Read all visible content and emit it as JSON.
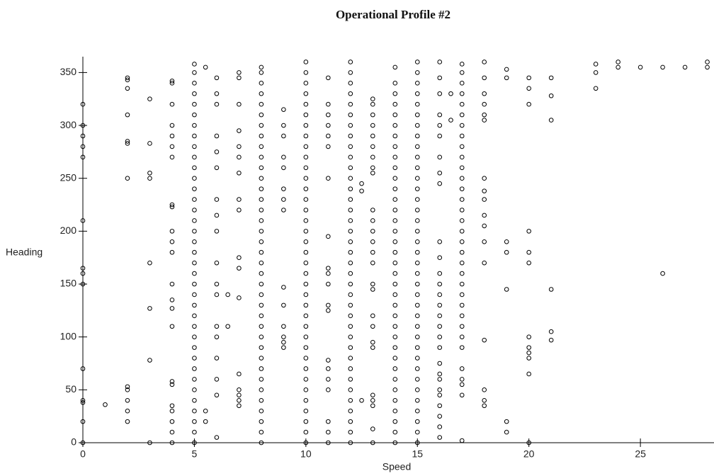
{
  "chart_data": {
    "type": "scatter",
    "title": "Operational Profile #2",
    "x_label": "Speed",
    "y_label": "Heading",
    "xlim": [
      0,
      28.3
    ],
    "ylim": [
      0,
      365
    ],
    "xticks": [
      0,
      5,
      10,
      15,
      20,
      25
    ],
    "yticks": [
      0,
      50,
      100,
      150,
      200,
      250,
      300,
      350
    ],
    "color": "#000000",
    "x": [
      0,
      0,
      0,
      0,
      0,
      0,
      0,
      0,
      0,
      0,
      0,
      0,
      0,
      0,
      1,
      2,
      2,
      2,
      2,
      2,
      2,
      2,
      2,
      2,
      2,
      2,
      2,
      3,
      3,
      3,
      3,
      3,
      3,
      3,
      3,
      4,
      4,
      4,
      4,
      4,
      4,
      4,
      4,
      4,
      4,
      4,
      4,
      4,
      4,
      4,
      4,
      4,
      4,
      4,
      4,
      4,
      4,
      4,
      5,
      5,
      5,
      5,
      5,
      5,
      5,
      5,
      5,
      5,
      5,
      5,
      5,
      5,
      5,
      5,
      5,
      5,
      5,
      5,
      5,
      5,
      5,
      5,
      5,
      5,
      5,
      5,
      5,
      5,
      5,
      5,
      5,
      5,
      5,
      5,
      5,
      5.5,
      5.5,
      5.5,
      6,
      6,
      6,
      6,
      6,
      6,
      6,
      6,
      6,
      6,
      6,
      6,
      6,
      6,
      6,
      6,
      6,
      6,
      6.5,
      6.5,
      7,
      7,
      7,
      7,
      7,
      7,
      7,
      7,
      7,
      7,
      7,
      7,
      7,
      7,
      7,
      7,
      7,
      8,
      8,
      8,
      8,
      8,
      8,
      8,
      8,
      8,
      8,
      8,
      8,
      8,
      8,
      8,
      8,
      8,
      8,
      8,
      8,
      8,
      8,
      8,
      8,
      8,
      8,
      8,
      8,
      8,
      8,
      8,
      8,
      8,
      8,
      8,
      8,
      8,
      9,
      9,
      9,
      9,
      9,
      9,
      9,
      9,
      9,
      9,
      9,
      9,
      9,
      9,
      10,
      10,
      10,
      10,
      10,
      10,
      10,
      10,
      10,
      10,
      10,
      10,
      10,
      10,
      10,
      10,
      10,
      10,
      10,
      10,
      10,
      10,
      10,
      10,
      10,
      10,
      10,
      10,
      10,
      10,
      10,
      10,
      10,
      10,
      10,
      10,
      10,
      11,
      11,
      11,
      11,
      11,
      11,
      11,
      11,
      11,
      11,
      11,
      11,
      11,
      11,
      11,
      11,
      11,
      11,
      11,
      11,
      12,
      12,
      12,
      12,
      12,
      12,
      12,
      12,
      12,
      12,
      12,
      12,
      12,
      12,
      12,
      12,
      12,
      12,
      12,
      12,
      12,
      12,
      12,
      12,
      12,
      12,
      12,
      12,
      12,
      12,
      12,
      12,
      12,
      12,
      12,
      12,
      12,
      12.5,
      12.5,
      12.5,
      13,
      13,
      13,
      13,
      13,
      13,
      13,
      13,
      13,
      13,
      13,
      13,
      13,
      13,
      13,
      13,
      13,
      13,
      13,
      13,
      13,
      13,
      13,
      13,
      13,
      13,
      14,
      14,
      14,
      14,
      14,
      14,
      14,
      14,
      14,
      14,
      14,
      14,
      14,
      14,
      14,
      14,
      14,
      14,
      14,
      14,
      14,
      14,
      14,
      14,
      14,
      14,
      14,
      14,
      14,
      14,
      14,
      14,
      14,
      14,
      14,
      14,
      15,
      15,
      15,
      15,
      15,
      15,
      15,
      15,
      15,
      15,
      15,
      15,
      15,
      15,
      15,
      15,
      15,
      15,
      15,
      15,
      15,
      15,
      15,
      15,
      15,
      15,
      15,
      15,
      15,
      15,
      15,
      15,
      15,
      15,
      15,
      15,
      15,
      16,
      16,
      16,
      16,
      16,
      16,
      16,
      16,
      16,
      16,
      16,
      16,
      16,
      16,
      16,
      16,
      16,
      16,
      16,
      16,
      16,
      16,
      16,
      16,
      16,
      16,
      16,
      16,
      16.5,
      16.5,
      17,
      17,
      17,
      17,
      17,
      17,
      17,
      17,
      17,
      17,
      17,
      17,
      17,
      17,
      17,
      17,
      17,
      17,
      17,
      17,
      17,
      17,
      17,
      17,
      17,
      17,
      17,
      17,
      17,
      17,
      17,
      17,
      17,
      18,
      18,
      18,
      18,
      18,
      18,
      18,
      18,
      18,
      18,
      18,
      18,
      18,
      18,
      18,
      18,
      18,
      19,
      19,
      19,
      19,
      19,
      19,
      19,
      20,
      20,
      20,
      20,
      20,
      20,
      20,
      20,
      20,
      20,
      20,
      20,
      21,
      21,
      21,
      21,
      21,
      21,
      23,
      23,
      23,
      24,
      24,
      25,
      26,
      26,
      27,
      28,
      28
    ],
    "values": [
      0,
      20,
      38,
      40,
      70,
      150,
      160,
      165,
      210,
      270,
      280,
      290,
      300,
      320,
      36,
      20,
      30,
      40,
      50,
      53,
      250,
      283,
      285,
      310,
      335,
      343,
      345,
      0,
      78,
      127,
      170,
      250,
      255,
      283,
      325,
      0,
      10,
      20,
      30,
      35,
      55,
      58,
      110,
      127,
      135,
      150,
      180,
      190,
      200,
      223,
      225,
      270,
      280,
      290,
      300,
      320,
      340,
      342,
      0,
      10,
      20,
      30,
      40,
      50,
      60,
      70,
      80,
      90,
      100,
      110,
      120,
      130,
      140,
      150,
      160,
      170,
      180,
      190,
      200,
      210,
      220,
      230,
      240,
      250,
      260,
      270,
      280,
      290,
      300,
      310,
      320,
      330,
      340,
      350,
      358,
      20,
      30,
      355,
      5,
      45,
      60,
      80,
      100,
      110,
      140,
      150,
      170,
      200,
      215,
      230,
      260,
      275,
      290,
      320,
      330,
      345,
      110,
      140,
      35,
      40,
      45,
      50,
      65,
      137,
      165,
      175,
      220,
      230,
      255,
      270,
      280,
      295,
      320,
      345,
      350,
      0,
      10,
      20,
      30,
      40,
      50,
      60,
      70,
      80,
      90,
      100,
      110,
      120,
      130,
      140,
      150,
      160,
      170,
      180,
      190,
      200,
      210,
      220,
      230,
      240,
      250,
      260,
      270,
      280,
      290,
      300,
      310,
      320,
      330,
      340,
      350,
      355,
      90,
      95,
      100,
      110,
      130,
      147,
      220,
      230,
      240,
      260,
      270,
      290,
      300,
      315,
      0,
      10,
      20,
      30,
      40,
      50,
      60,
      70,
      80,
      90,
      100,
      110,
      120,
      130,
      140,
      150,
      160,
      170,
      180,
      190,
      200,
      210,
      220,
      230,
      240,
      250,
      260,
      270,
      280,
      290,
      300,
      310,
      320,
      330,
      340,
      350,
      360,
      0,
      10,
      20,
      50,
      60,
      70,
      78,
      125,
      130,
      150,
      160,
      165,
      195,
      250,
      280,
      290,
      300,
      310,
      320,
      345,
      0,
      10,
      20,
      30,
      40,
      50,
      60,
      70,
      80,
      90,
      100,
      110,
      120,
      130,
      140,
      150,
      160,
      170,
      180,
      190,
      200,
      210,
      220,
      230,
      240,
      250,
      260,
      270,
      280,
      290,
      300,
      310,
      320,
      330,
      340,
      350,
      360,
      40,
      238,
      245,
      0,
      13,
      35,
      40,
      45,
      90,
      95,
      110,
      120,
      145,
      150,
      170,
      180,
      190,
      200,
      210,
      220,
      255,
      260,
      270,
      280,
      290,
      300,
      310,
      320,
      325,
      0,
      10,
      20,
      30,
      40,
      50,
      60,
      70,
      80,
      90,
      100,
      110,
      120,
      130,
      140,
      150,
      160,
      170,
      180,
      190,
      200,
      210,
      220,
      230,
      240,
      250,
      260,
      270,
      280,
      290,
      300,
      310,
      320,
      330,
      340,
      355,
      0,
      10,
      20,
      30,
      40,
      50,
      60,
      70,
      80,
      90,
      100,
      110,
      120,
      130,
      140,
      150,
      160,
      170,
      180,
      190,
      200,
      210,
      220,
      230,
      240,
      250,
      260,
      270,
      280,
      290,
      300,
      310,
      320,
      330,
      340,
      350,
      360,
      5,
      15,
      25,
      35,
      45,
      50,
      60,
      65,
      75,
      90,
      100,
      110,
      120,
      130,
      140,
      150,
      160,
      175,
      190,
      245,
      255,
      270,
      290,
      300,
      310,
      330,
      345,
      360,
      305,
      330,
      2,
      45,
      55,
      60,
      70,
      90,
      100,
      110,
      120,
      130,
      140,
      150,
      160,
      170,
      180,
      190,
      200,
      210,
      220,
      230,
      240,
      250,
      260,
      270,
      280,
      290,
      300,
      310,
      320,
      330,
      340,
      350,
      358,
      35,
      40,
      50,
      97,
      170,
      190,
      205,
      215,
      230,
      238,
      250,
      305,
      310,
      320,
      330,
      345,
      360,
      10,
      20,
      145,
      180,
      190,
      345,
      353,
      0,
      65,
      80,
      85,
      90,
      100,
      170,
      180,
      200,
      320,
      335,
      345,
      97,
      105,
      145,
      305,
      328,
      345,
      335,
      350,
      358,
      355,
      360,
      355,
      160,
      355,
      355,
      355,
      360
    ]
  }
}
